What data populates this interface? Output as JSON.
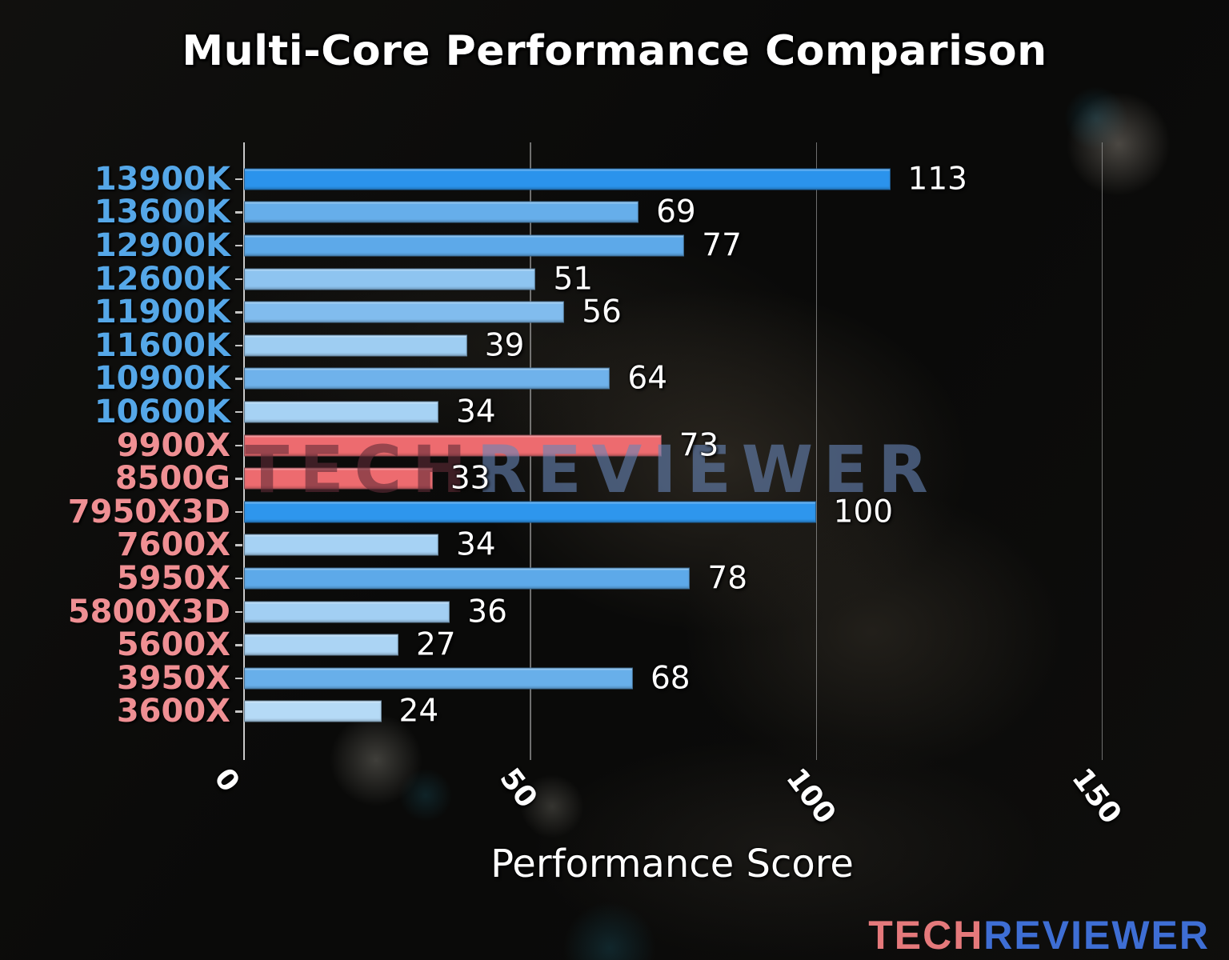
{
  "title": "Multi-Core Performance Comparison",
  "watermark": {
    "text_left": "TECH",
    "text_right": "REVIEWER"
  },
  "brand_logo": {
    "text_left": "TECH",
    "text_right": "REVIEWER",
    "color_left": "#e5797b",
    "color_right": "#3e6ed4"
  },
  "chart_data": {
    "type": "bar",
    "orientation": "horizontal",
    "title": "Multi-Core Performance Comparison",
    "xlabel": "Performance Score",
    "xlim": [
      0,
      157
    ],
    "xticks": [
      0,
      50,
      100,
      150
    ],
    "grid": true,
    "legend": false,
    "categories": [
      "13900K",
      "13600K",
      "12900K",
      "12600K",
      "11900K",
      "11600K",
      "10900K",
      "10600K",
      "9900X",
      "8500G",
      "7950X3D",
      "7600X",
      "5950X",
      "5800X3D",
      "5600X",
      "3950X",
      "3600X"
    ],
    "values": [
      113,
      69,
      77,
      51,
      56,
      39,
      64,
      34,
      73,
      33,
      100,
      34,
      78,
      36,
      27,
      68,
      24
    ],
    "bar_colors": [
      "#2b93ec",
      "#66aeea",
      "#5da9e9",
      "#8ec4f0",
      "#81bcee",
      "#9ecdf2",
      "#6fb2eb",
      "#a6d2f4",
      "#ed6b6f",
      "#ed6b6f",
      "#2e96ed",
      "#a6d2f4",
      "#5da9e9",
      "#a2cff3",
      "#abd4f4",
      "#68afea",
      "#b5daf6"
    ],
    "category_groups": [
      "intel",
      "intel",
      "intel",
      "intel",
      "intel",
      "intel",
      "intel",
      "intel",
      "amd",
      "amd",
      "amd",
      "amd",
      "amd",
      "amd",
      "amd",
      "amd",
      "amd"
    ],
    "group_label_colors": {
      "intel": "#55a7e8",
      "amd": "#ef8f93"
    },
    "value_label_color": "#ffffff",
    "axis_colors": {
      "spine": "#dedede",
      "grid": "#c3c3c3",
      "tick_label": "#ffffff"
    }
  }
}
